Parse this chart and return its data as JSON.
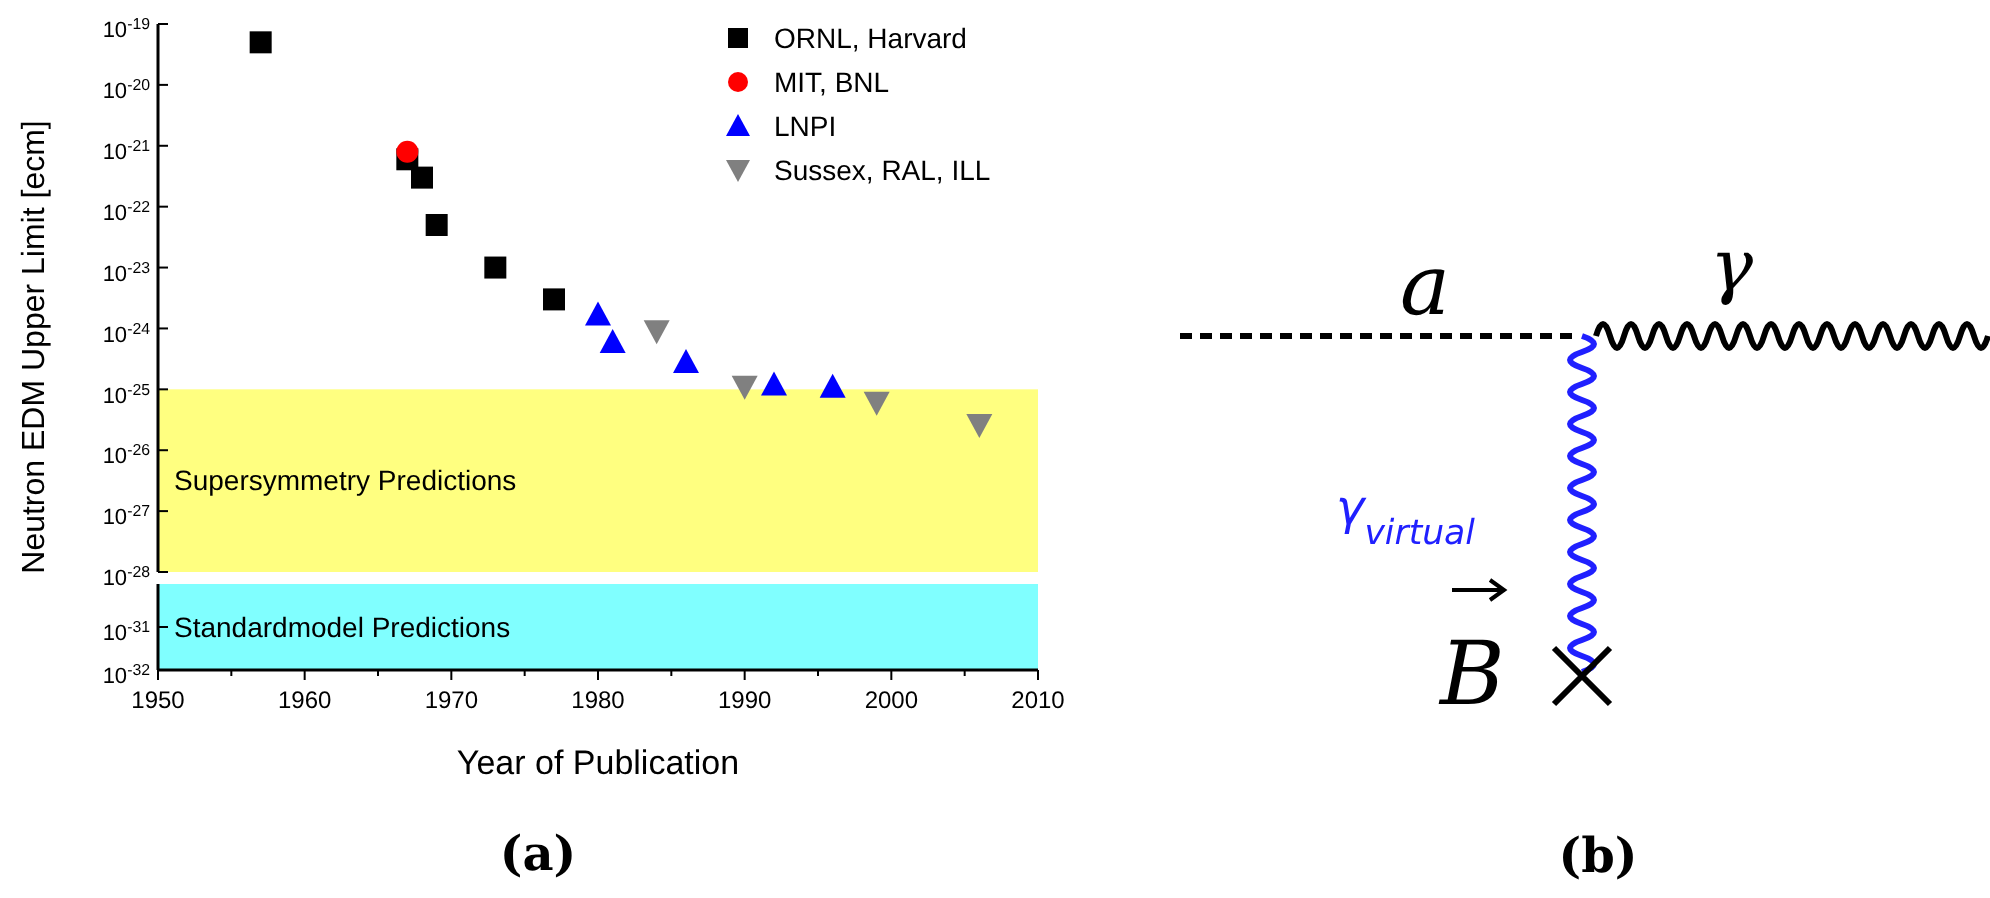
{
  "chart_data": [
    {
      "type": "scatter",
      "ylabel": "Neutron EDM Upper Limit [ecm]",
      "log": "y",
      "xlim": [
        1950,
        2010
      ],
      "ylim": [
        1e-28,
        1e-19
      ],
      "tick_labels": "y",
      "legend": "top right",
      "yticks": [
        {
          "value": 1e-28,
          "label": "10$^{-28}$"
        },
        {
          "value": 1e-27,
          "label": "10$^{-27}$"
        },
        {
          "value": 1e-26,
          "label": "10$^{-26}$"
        },
        {
          "value": 1e-25,
          "label": "10$^{-25}$"
        },
        {
          "value": 1e-24,
          "label": "10$^{-24}$"
        },
        {
          "value": 1e-23,
          "label": "10$^{-23}$"
        },
        {
          "value": 1e-22,
          "label": "10$^{-22}$"
        },
        {
          "value": 1e-21,
          "label": "10$^{-21}$"
        },
        {
          "value": 1e-20,
          "label": "10$^{-20}$"
        },
        {
          "value": 1e-19,
          "label": "10$^{-19}$"
        }
      ],
      "series": [
        {
          "name": "ORNL, Harvard",
          "color": "#000000",
          "marker": "square",
          "x": [
            1957,
            1967,
            1968,
            1969,
            1973,
            1977
          ],
          "values": [
            5e-20,
            6e-22,
            3e-22,
            5e-23,
            1e-23,
            3e-24
          ]
        },
        {
          "name": "MIT, BNL",
          "color": "#ff0000",
          "marker": "circle",
          "x": [
            1967
          ],
          "values": [
            8e-22
          ]
        },
        {
          "name": "LNPI",
          "color": "#0000ff",
          "marker": "triangle",
          "x": [
            1980,
            1981,
            1986,
            1992,
            1996
          ],
          "values": [
            1.7e-24,
            6e-25,
            2.8e-25,
            1.2e-25,
            1.1e-25
          ]
        },
        {
          "name": "Sussex, RAL, ILL",
          "color": "#808080",
          "marker": "triangle-down",
          "x": [
            1984,
            1990,
            1999,
            2006
          ],
          "values": [
            9e-25,
            1.1e-25,
            6e-26,
            2.6e-26
          ]
        }
      ],
      "bands": [
        {
          "axis": "y",
          "from": 1e-28,
          "to": 1e-25,
          "label": "Supersymmetry Predictions",
          "color": "#ffff80"
        }
      ]
    },
    {
      "type": "scatter",
      "xlabel": "Year of Publication",
      "log": "y",
      "xlim": [
        1950,
        2010
      ],
      "ylim": [
        1e-32,
        1e-30
      ],
      "xticks": [
        1950,
        {
          "value": 1955,
          "label": null
        },
        1960,
        {
          "value": 1965,
          "label": null
        },
        1970,
        {
          "value": 1975,
          "label": null
        },
        1980,
        {
          "value": 1985,
          "label": null
        },
        1990,
        {
          "value": 1995,
          "label": null
        },
        2000,
        {
          "value": 2005,
          "label": null
        },
        2010
      ],
      "yticks": [
        {
          "value": 1e-32,
          "label": "10$^{-32}$"
        },
        {
          "value": 1e-31,
          "label": "10$^{-31}$"
        }
      ],
      "bands": [
        {
          "axis": "y",
          "from": 1e-32,
          "to": 1e-30,
          "label": "Standardmodel Predictions",
          "color": "#80ffff"
        }
      ],
      "annotations": [
        "(a)"
      ]
    },
    {
      "type": "other",
      "title": "(b)",
      "annotations": [
        "a",
        "γ",
        "γ$_{virtual}$",
        "B"
      ]
    }
  ]
}
